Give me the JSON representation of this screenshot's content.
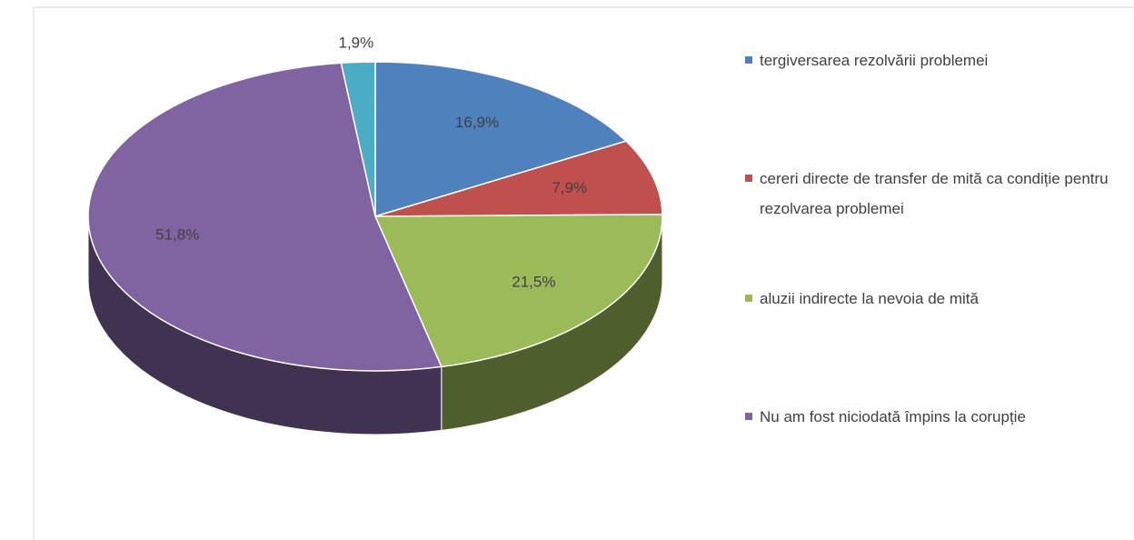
{
  "chart_data": {
    "type": "pie",
    "categories": [
      "tergiversarea rezolvării problemei",
      "cereri directe de transfer de mită ca condiție pentru rezolvarea problemei",
      "aluzii indirecte la nevoia de mită",
      "Nu am fost niciodată împins la corupție",
      null
    ],
    "values": [
      16.9,
      7.9,
      21.5,
      51.8,
      1.9
    ],
    "value_labels": [
      "16,9%",
      "7,9%",
      "21,5%",
      "51,8%",
      "1,9%"
    ],
    "colors": [
      "#4f81bd",
      "#c0504d",
      "#9bbb59",
      "#8064a2",
      "#4bacc6"
    ],
    "legend": "right"
  }
}
